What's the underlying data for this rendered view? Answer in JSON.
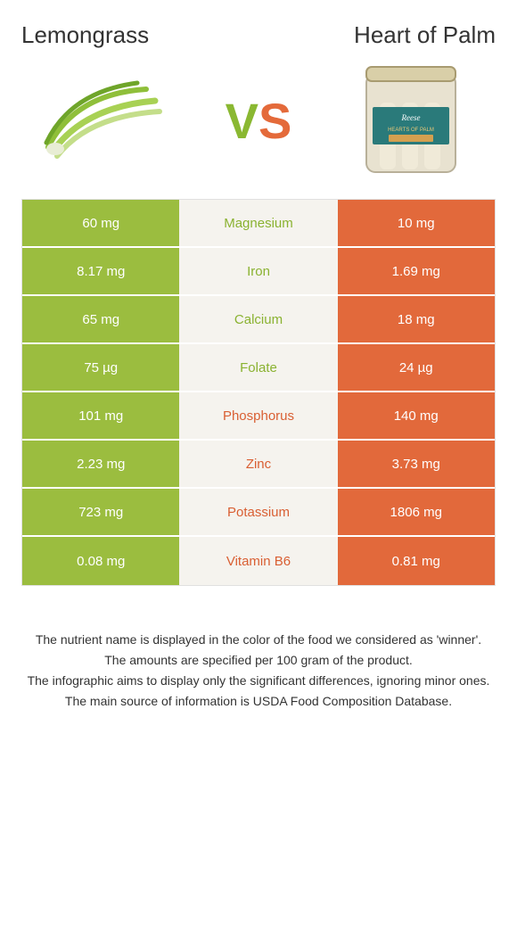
{
  "titles": {
    "left": "Lemongrass",
    "right": "Heart of Palm"
  },
  "vs": {
    "v": "V",
    "s": "S"
  },
  "colors": {
    "leftBar": "#9bbd3f",
    "rightBar": "#e2693b",
    "midBg": "#f5f3ee",
    "leftText": "#8ab231",
    "rightText": "#d95f33"
  },
  "rows": [
    {
      "left": "60 mg",
      "name": "Magnesium",
      "right": "10 mg",
      "winner": "left"
    },
    {
      "left": "8.17 mg",
      "name": "Iron",
      "right": "1.69 mg",
      "winner": "left"
    },
    {
      "left": "65 mg",
      "name": "Calcium",
      "right": "18 mg",
      "winner": "left"
    },
    {
      "left": "75 µg",
      "name": "Folate",
      "right": "24 µg",
      "winner": "left"
    },
    {
      "left": "101 mg",
      "name": "Phosphorus",
      "right": "140 mg",
      "winner": "right"
    },
    {
      "left": "2.23 mg",
      "name": "Zinc",
      "right": "3.73 mg",
      "winner": "right"
    },
    {
      "left": "723 mg",
      "name": "Potassium",
      "right": "1806 mg",
      "winner": "right"
    },
    {
      "left": "0.08 mg",
      "name": "Vitamin B6",
      "right": "0.81 mg",
      "winner": "right"
    }
  ],
  "notes": [
    "The nutrient name is displayed in the color of the food we considered as 'winner'.",
    "The amounts are specified per 100 gram of the product.",
    "The infographic aims to display only the significant differences, ignoring minor ones.",
    "The main source of information is USDA Food Composition Database."
  ]
}
